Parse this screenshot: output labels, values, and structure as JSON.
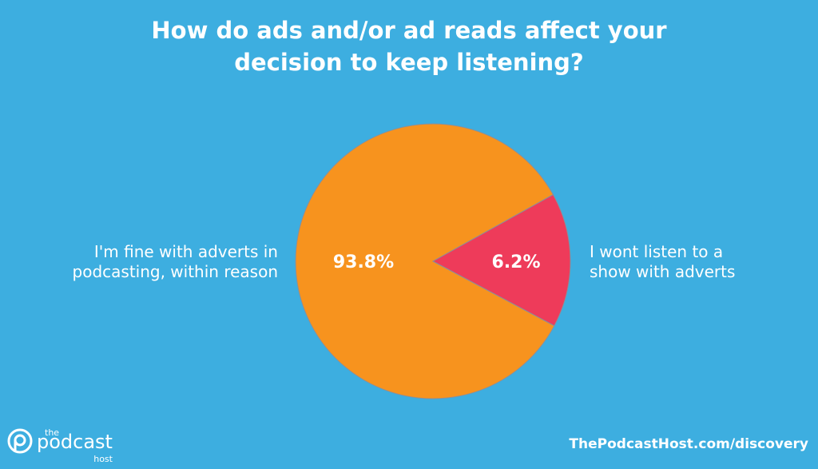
{
  "chart_data": {
    "type": "pie",
    "title": "How do ads and/or ad reads affect your decision to keep listening?",
    "title_lines": [
      "How do ads and/or ad reads affect your",
      "decision to keep listening?"
    ],
    "slices": [
      {
        "label": "I'm fine with adverts in podcasting, within reason",
        "label_lines": [
          "I'm fine with adverts in",
          "podcasting, within reason"
        ],
        "value": 93.8,
        "data_label": "93.8%",
        "color": "#f7931e"
      },
      {
        "label": "I wont listen to a show with adverts",
        "label_lines": [
          "I wont listen to a",
          "show with adverts"
        ],
        "value": 6.2,
        "data_label": "6.2%",
        "color": "#ee3b5a"
      }
    ]
  },
  "background_color": "#3daee0",
  "logo": {
    "small_top": "the",
    "main": "podcast",
    "small_bottom": "host"
  },
  "footer": "ThePodcastHost.com/discovery"
}
